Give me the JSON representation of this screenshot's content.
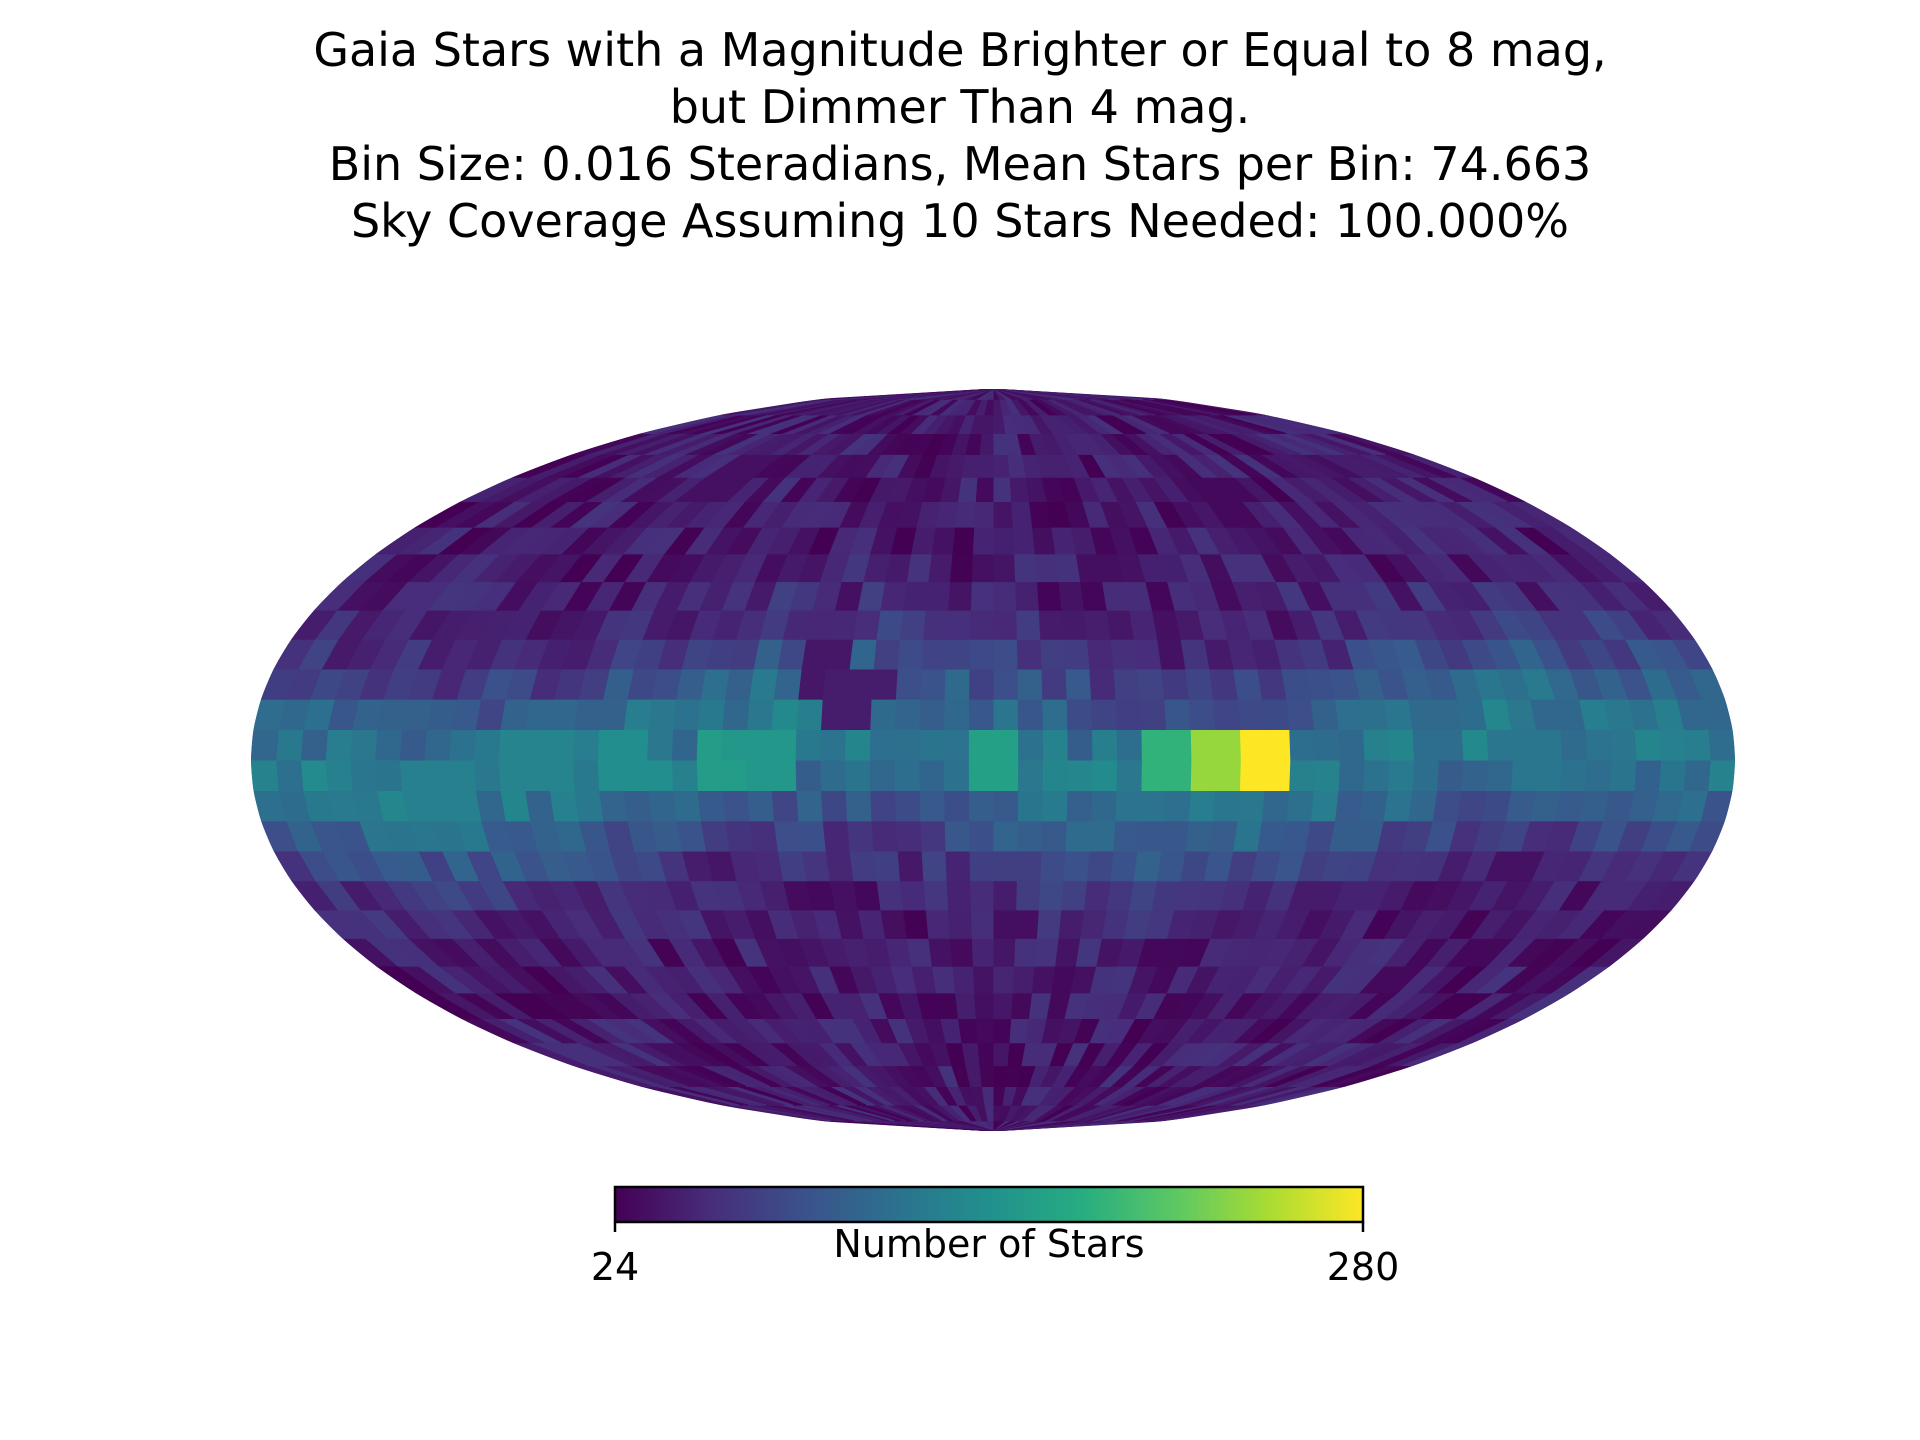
{
  "title_lines": [
    "Gaia Stars with a Magnitude Brighter or Equal to 8 mag,",
    "but Dimmer Than 4 mag.",
    "Bin Size: 0.016 Steradians, Mean Stars per Bin: 74.663",
    "Sky Coverage Assuming 10 Stars Needed: 100.000%"
  ],
  "chart_data": {
    "type": "heatmap",
    "projection": "mollweide",
    "colormap": "viridis",
    "title": "Gaia Stars with a Magnitude Brighter or Equal to 8 mag, but Dimmer Than 4 mag. Bin Size: 0.016 Steradians, Mean Stars per Bin: 74.663 Sky Coverage Assuming 10 Stars Needed: 100.000%",
    "bin_size_steradians": 0.016,
    "mean_stars_per_bin": 74.663,
    "sky_coverage_percent": 100.0,
    "stars_needed": 10,
    "colorbar": {
      "label": "Number of Stars",
      "min": 24,
      "max": 280,
      "tick_labels": [
        "24",
        "280"
      ],
      "orientation": "horizontal",
      "placement": "bottom"
    },
    "grid": false,
    "hotspots": [
      {
        "lon": -62,
        "lat": 0,
        "value": 280
      },
      {
        "lon": -52,
        "lat": 0,
        "value": 240
      },
      {
        "lon": -42,
        "lat": 0,
        "value": 190
      },
      {
        "lon": 0,
        "lat": -2,
        "value": 170
      },
      {
        "lon": 62,
        "lat": 0,
        "value": 165
      },
      {
        "lon": 55,
        "lat": 2,
        "value": 160
      },
      {
        "lon": 88,
        "lat": -1,
        "value": 150
      },
      {
        "lon": 112,
        "lat": 0,
        "value": 140
      },
      {
        "lon": 135,
        "lat": -6,
        "value": 135
      },
      {
        "lon": -132,
        "lat": 0,
        "value": 125
      },
      {
        "lon": 42,
        "lat": 18,
        "value": 40
      },
      {
        "lon": 35,
        "lat": 14,
        "value": 45
      },
      {
        "lon": -80,
        "lat": 55,
        "value": 30
      },
      {
        "lon": 100,
        "lat": 60,
        "value": 35
      }
    ]
  }
}
